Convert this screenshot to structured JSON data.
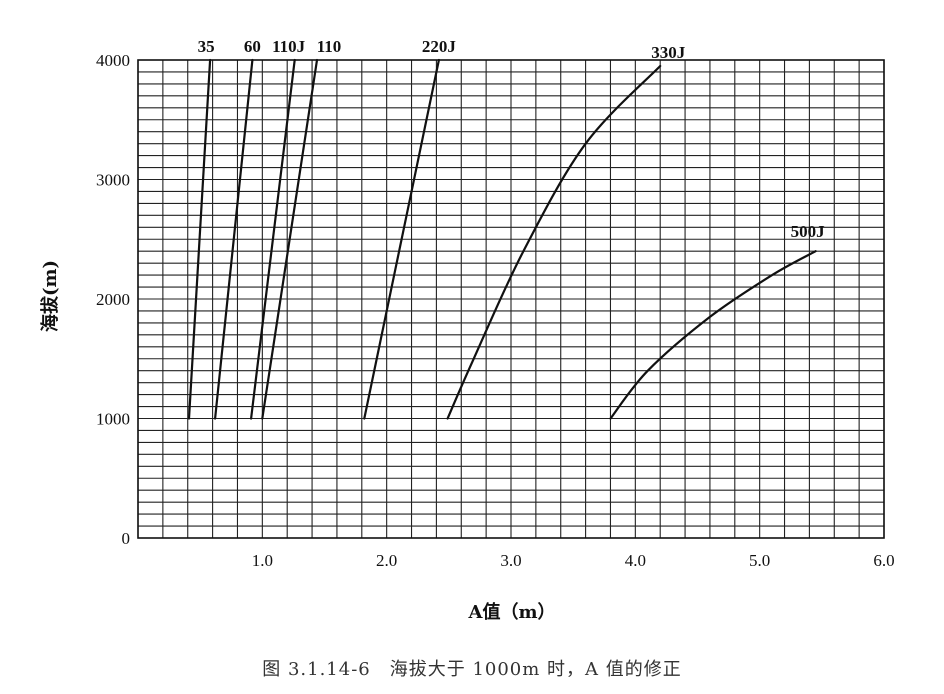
{
  "chart_data": {
    "type": "line",
    "title": "",
    "caption": "图 3.1.14-6　海拔大于 1000m 时，A 值的修正",
    "xlabel": "A值（m）",
    "ylabel": "海拔(m)",
    "xlim": [
      0,
      6.0
    ],
    "ylim": [
      0,
      4000
    ],
    "x_ticks": [
      "1.0",
      "2.0",
      "3.0",
      "4.0",
      "5.0",
      "6.0"
    ],
    "y_ticks": [
      "0",
      "1000",
      "2000",
      "3000",
      "4000"
    ],
    "grid": true,
    "series": [
      {
        "name": "35",
        "points": [
          [
            0.41,
            1000
          ],
          [
            0.58,
            4000
          ]
        ]
      },
      {
        "name": "60",
        "points": [
          [
            0.62,
            1000
          ],
          [
            0.92,
            4000
          ]
        ]
      },
      {
        "name": "110J",
        "points": [
          [
            0.91,
            1000
          ],
          [
            1.26,
            4000
          ]
        ]
      },
      {
        "name": "110",
        "points": [
          [
            1.0,
            1000
          ],
          [
            1.44,
            4000
          ]
        ]
      },
      {
        "name": "220J",
        "points": [
          [
            1.82,
            1000
          ],
          [
            2.42,
            4000
          ]
        ]
      },
      {
        "name": "330J",
        "points": [
          [
            2.49,
            1000
          ],
          [
            2.7,
            1500
          ],
          [
            3.1,
            2400
          ],
          [
            3.6,
            3300
          ],
          [
            4.2,
            3950
          ]
        ]
      },
      {
        "name": "500J",
        "points": [
          [
            3.8,
            1000
          ],
          [
            4.1,
            1400
          ],
          [
            4.6,
            1850
          ],
          [
            5.1,
            2200
          ],
          [
            5.45,
            2400
          ]
        ]
      }
    ]
  }
}
